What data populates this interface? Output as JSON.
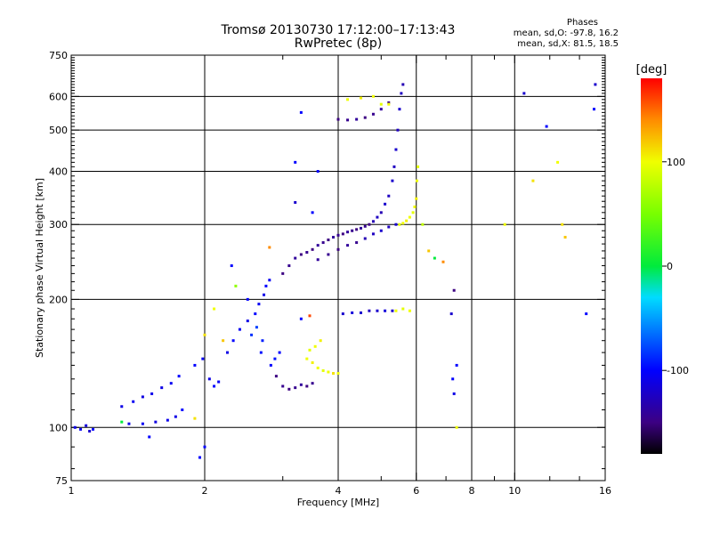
{
  "chart_data": {
    "type": "scatter",
    "title": "Tromsø 20130730 17:12:00–17:13:43",
    "subtitle": "RwPretec (8p)",
    "xlabel": "Frequency [MHz]",
    "ylabel": "Stationary phase Virtual Height [km]",
    "x_scale": "log",
    "y_scale": "log",
    "xlim": [
      1,
      16
    ],
    "ylim": [
      75,
      750
    ],
    "x_ticks": [
      1,
      2,
      4,
      6,
      8,
      10,
      16
    ],
    "x_ticklabels": [
      "1",
      "2",
      "4",
      "6",
      "8",
      "10",
      "16"
    ],
    "y_ticks": [
      75,
      100,
      200,
      300,
      400,
      500,
      600,
      750
    ],
    "y_ticklabels": [
      "75",
      "100",
      "200",
      "300",
      "400",
      "500",
      "600",
      "750"
    ],
    "grid_x": [
      2,
      4,
      6,
      8,
      10
    ],
    "grid_y": [
      100,
      200,
      300,
      400,
      500,
      600
    ],
    "legend": {
      "title": "Phases",
      "lines": [
        "mean, sd,O: -97.8, 16.2",
        "mean, sd,X:  81.5, 18.5"
      ],
      "placement": "top-right"
    },
    "colorbar": {
      "unit": "[deg]",
      "range": [
        -180,
        180
      ],
      "tick_values": [
        100,
        0,
        -100
      ],
      "tick_labels": [
        "100",
        "0",
        "-100"
      ],
      "colors": [
        "#000000",
        "#3a0080",
        "#0000ff",
        "#00ffff",
        "#00ff00",
        "#ffff00",
        "#ff8000",
        "#ff0000"
      ]
    },
    "series": [
      {
        "points": [
          [
            1.02,
            100,
            -110
          ],
          [
            1.05,
            99,
            -105
          ],
          [
            1.08,
            101,
            -115
          ],
          [
            1.1,
            98,
            -120
          ],
          [
            1.12,
            99,
            -100
          ],
          [
            1.3,
            112,
            -110
          ],
          [
            1.38,
            115,
            -105
          ],
          [
            1.45,
            118,
            -112
          ],
          [
            1.52,
            120,
            -108
          ],
          [
            1.6,
            124,
            -110
          ],
          [
            1.68,
            127,
            -105
          ],
          [
            1.75,
            132,
            -100
          ],
          [
            1.35,
            102,
            -110
          ],
          [
            1.45,
            102,
            -105
          ],
          [
            1.55,
            103,
            -112
          ],
          [
            1.65,
            104,
            -108
          ],
          [
            1.72,
            106,
            -110
          ],
          [
            1.78,
            110,
            -100
          ],
          [
            1.9,
            140,
            -100
          ],
          [
            1.98,
            145,
            -105
          ],
          [
            2.05,
            130,
            -110
          ],
          [
            2.1,
            125,
            -100
          ],
          [
            2.15,
            128,
            -105
          ],
          [
            2.25,
            150,
            -110
          ],
          [
            2.32,
            160,
            -100
          ],
          [
            2.4,
            170,
            -105
          ],
          [
            2.5,
            178,
            -110
          ],
          [
            2.6,
            185,
            -100
          ],
          [
            2.65,
            195,
            -105
          ],
          [
            2.72,
            205,
            -110
          ],
          [
            2.75,
            215,
            -100
          ],
          [
            2.8,
            222,
            -105
          ],
          [
            2.55,
            165,
            -85
          ],
          [
            2.62,
            172,
            -80
          ],
          [
            2.7,
            160,
            -90
          ],
          [
            2.68,
            150,
            -95
          ],
          [
            2.9,
            132,
            -150
          ],
          [
            3.0,
            125,
            -145
          ],
          [
            3.1,
            123,
            -150
          ],
          [
            3.2,
            124,
            -145
          ],
          [
            3.3,
            126,
            -140
          ],
          [
            3.4,
            125,
            -150
          ],
          [
            3.5,
            127,
            -145
          ],
          [
            2.82,
            140,
            -100
          ],
          [
            2.88,
            145,
            -95
          ],
          [
            2.95,
            150,
            -100
          ],
          [
            3.4,
            145,
            100
          ],
          [
            3.5,
            142,
            105
          ],
          [
            3.6,
            138,
            100
          ],
          [
            3.7,
            136,
            95
          ],
          [
            3.8,
            135,
            100
          ],
          [
            3.9,
            134,
            110
          ],
          [
            4.0,
            134,
            100
          ],
          [
            3.45,
            152,
            95
          ],
          [
            3.55,
            155,
            100
          ],
          [
            3.65,
            160,
            105
          ],
          [
            3.0,
            230,
            -150
          ],
          [
            3.1,
            240,
            -145
          ],
          [
            3.2,
            250,
            -140
          ],
          [
            3.3,
            255,
            -150
          ],
          [
            3.4,
            258,
            -145
          ],
          [
            3.5,
            262,
            -150
          ],
          [
            3.6,
            268,
            -140
          ],
          [
            3.7,
            272,
            -145
          ],
          [
            3.8,
            276,
            -150
          ],
          [
            3.9,
            280,
            -140
          ],
          [
            4.0,
            283,
            -145
          ],
          [
            4.1,
            285,
            -150
          ],
          [
            4.2,
            288,
            -140
          ],
          [
            4.3,
            290,
            -145
          ],
          [
            4.4,
            292,
            -150
          ],
          [
            4.5,
            294,
            -140
          ],
          [
            4.6,
            297,
            -145
          ],
          [
            4.7,
            300,
            -150
          ],
          [
            4.8,
            305,
            -130
          ],
          [
            4.9,
            312,
            -125
          ],
          [
            5.0,
            320,
            -130
          ],
          [
            5.1,
            335,
            -120
          ],
          [
            5.2,
            350,
            -125
          ],
          [
            5.3,
            380,
            -120
          ],
          [
            5.35,
            410,
            -125
          ],
          [
            5.4,
            450,
            -120
          ],
          [
            5.45,
            500,
            -125
          ],
          [
            5.5,
            560,
            -120
          ],
          [
            5.55,
            610,
            -125
          ],
          [
            5.6,
            640,
            -130
          ],
          [
            3.6,
            248,
            -140
          ],
          [
            3.8,
            255,
            -145
          ],
          [
            4.0,
            262,
            -150
          ],
          [
            4.2,
            268,
            -140
          ],
          [
            4.4,
            272,
            -145
          ],
          [
            4.6,
            278,
            -130
          ],
          [
            4.8,
            285,
            -125
          ],
          [
            5.0,
            290,
            -120
          ],
          [
            5.2,
            296,
            -125
          ],
          [
            5.4,
            300,
            -120
          ],
          [
            5.5,
            300,
            95
          ],
          [
            5.6,
            302,
            100
          ],
          [
            5.7,
            306,
            105
          ],
          [
            5.8,
            312,
            100
          ],
          [
            5.9,
            320,
            95
          ],
          [
            5.95,
            330,
            100
          ],
          [
            6.0,
            345,
            105
          ],
          [
            6.02,
            380,
            100
          ],
          [
            6.05,
            410,
            95
          ],
          [
            4.0,
            530,
            -150
          ],
          [
            4.2,
            528,
            -145
          ],
          [
            4.4,
            530,
            -140
          ],
          [
            4.6,
            535,
            -150
          ],
          [
            4.8,
            545,
            -145
          ],
          [
            5.0,
            560,
            -140
          ],
          [
            5.2,
            580,
            -150
          ],
          [
            4.2,
            590,
            100
          ],
          [
            4.5,
            595,
            105
          ],
          [
            4.8,
            600,
            100
          ],
          [
            5.0,
            575,
            95
          ],
          [
            5.2,
            575,
            100
          ],
          [
            4.1,
            185,
            -120
          ],
          [
            4.3,
            186,
            -115
          ],
          [
            4.5,
            186,
            -120
          ],
          [
            4.7,
            188,
            -125
          ],
          [
            4.9,
            188,
            -120
          ],
          [
            5.1,
            188,
            -115
          ],
          [
            5.3,
            188,
            -120
          ],
          [
            5.4,
            188,
            100
          ],
          [
            5.6,
            190,
            95
          ],
          [
            5.8,
            188,
            100
          ],
          [
            2.3,
            240,
            -100
          ],
          [
            2.5,
            200,
            -100
          ],
          [
            3.3,
            180,
            -100
          ],
          [
            3.5,
            320,
            -100
          ],
          [
            3.6,
            400,
            -100
          ],
          [
            3.2,
            420,
            -100
          ],
          [
            3.3,
            550,
            -100
          ],
          [
            2.2,
            160,
            120
          ],
          [
            2.0,
            165,
            110
          ],
          [
            2.1,
            190,
            100
          ],
          [
            2.35,
            215,
            60
          ],
          [
            2.8,
            265,
            140
          ],
          [
            3.45,
            183,
            160
          ],
          [
            3.2,
            338,
            -120
          ],
          [
            1.3,
            103,
            0
          ],
          [
            1.5,
            95,
            -100
          ],
          [
            1.9,
            105,
            110
          ],
          [
            1.95,
            85,
            -100
          ],
          [
            2.0,
            90,
            -100
          ],
          [
            6.2,
            300,
            80
          ],
          [
            6.4,
            260,
            120
          ],
          [
            6.6,
            250,
            0
          ],
          [
            6.9,
            245,
            140
          ],
          [
            7.2,
            185,
            -120
          ],
          [
            7.3,
            210,
            -150
          ],
          [
            7.4,
            140,
            -100
          ],
          [
            7.4,
            100,
            100
          ],
          [
            7.25,
            130,
            -100
          ],
          [
            7.3,
            120,
            -110
          ],
          [
            10.5,
            610,
            -120
          ],
          [
            11.8,
            510,
            -100
          ],
          [
            12.5,
            420,
            100
          ],
          [
            12.8,
            300,
            110
          ],
          [
            13,
            280,
            120
          ],
          [
            14.5,
            185,
            -100
          ],
          [
            15.2,
            640,
            -120
          ],
          [
            15.1,
            560,
            -100
          ],
          [
            11,
            380,
            110
          ],
          [
            9.5,
            300,
            100
          ]
        ]
      }
    ]
  }
}
